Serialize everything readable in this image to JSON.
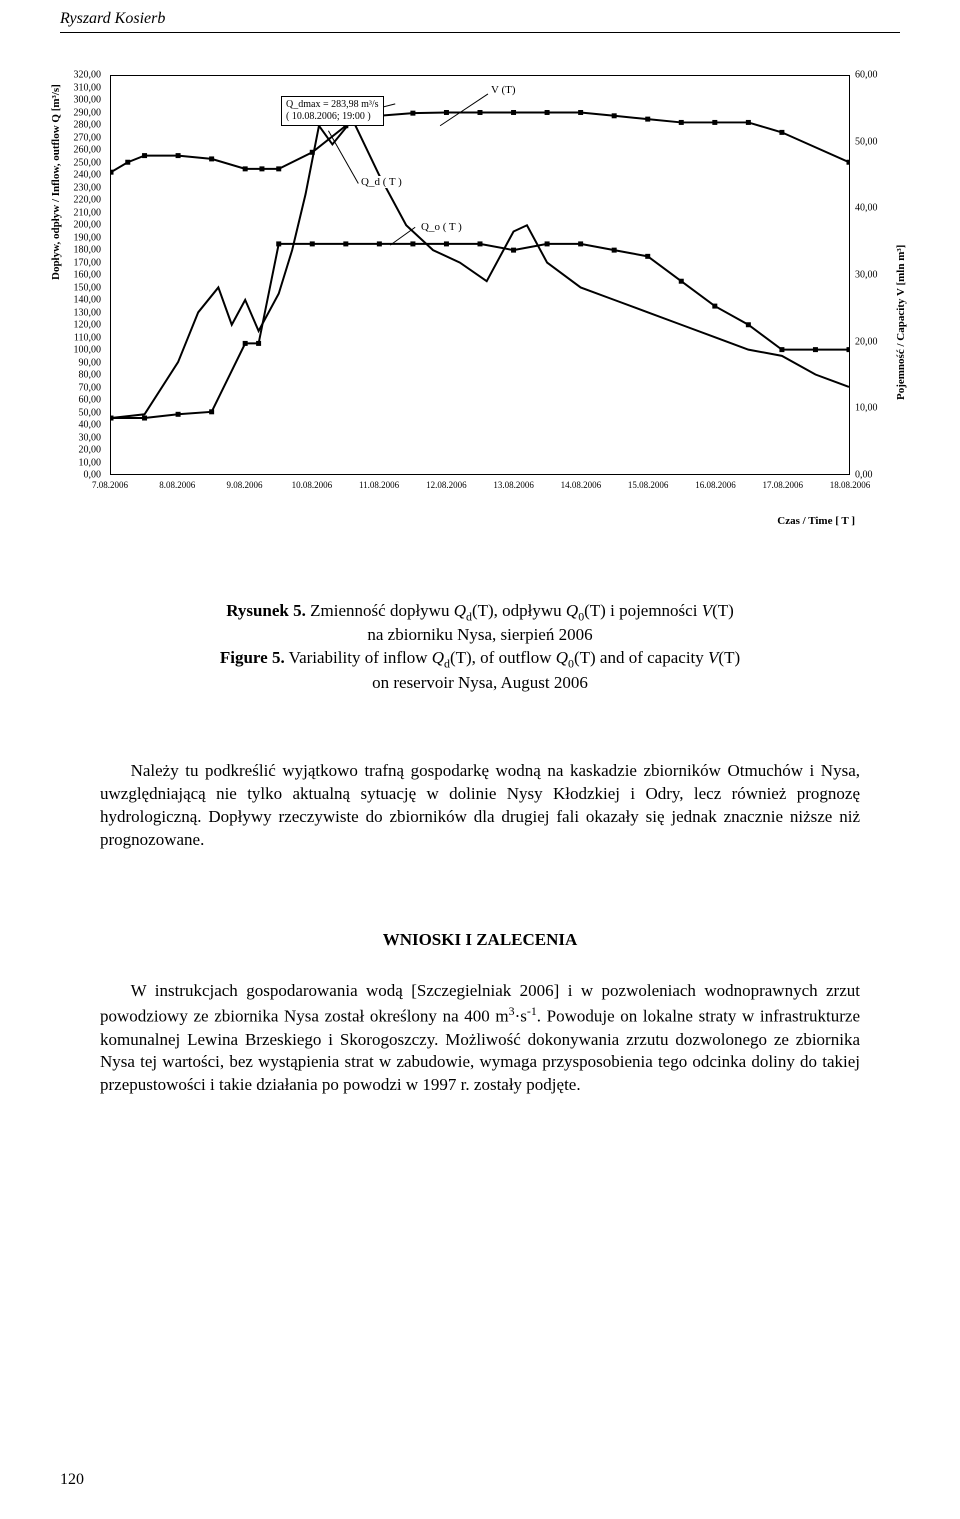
{
  "header": {
    "author": "Ryszard Kosierb"
  },
  "chart": {
    "type": "line",
    "y_left_label": "Dopływ, odpływ / Inflow, outflow Q [m³/s]",
    "y_right_label": "Pojemność / Capacity V [mln m³]",
    "x_label": "Czas / Time [ T ]",
    "y_left_min": 0,
    "y_left_max": 320,
    "y_left_step": 10,
    "y_left_ticks": [
      "0,00",
      "10,00",
      "20,00",
      "30,00",
      "40,00",
      "50,00",
      "60,00",
      "70,00",
      "80,00",
      "90,00",
      "100,00",
      "110,00",
      "120,00",
      "130,00",
      "140,00",
      "150,00",
      "160,00",
      "170,00",
      "180,00",
      "190,00",
      "200,00",
      "210,00",
      "220,00",
      "230,00",
      "240,00",
      "250,00",
      "260,00",
      "270,00",
      "280,00",
      "290,00",
      "300,00",
      "310,00",
      "320,00"
    ],
    "y_right_min": 0,
    "y_right_max": 60,
    "y_right_step": 10,
    "y_right_ticks": [
      "0,00",
      "10,00",
      "20,00",
      "30,00",
      "40,00",
      "50,00",
      "60,00"
    ],
    "x_categories": [
      "7.08.2006",
      "8.08.2006",
      "9.08.2006",
      "10.08.2006",
      "11.08.2006",
      "12.08.2006",
      "13.08.2006",
      "14.08.2006",
      "15.08.2006",
      "16.08.2006",
      "17.08.2006",
      "18.08.2006"
    ],
    "annotation": {
      "line1": "Q_dmax = 283,98 m³/s",
      "line2": "( 10.08.2006; 19:00 )"
    },
    "callouts": {
      "v": "V (T)",
      "qd": "Q_d ( T )",
      "qo": "Q_o ( T )"
    },
    "series": {
      "V": {
        "axis": "right",
        "color": "#000000",
        "marker": "square-filled",
        "line_width": 2,
        "points_x": [
          0,
          0.25,
          0.5,
          1,
          1.5,
          2,
          2.25,
          2.5,
          3,
          3.5,
          4,
          4.5,
          5,
          5.5,
          6,
          6.5,
          7,
          7.5,
          8,
          8.5,
          9,
          9.5,
          10,
          11
        ],
        "points_y": [
          45.5,
          47,
          48,
          48,
          47.5,
          46,
          46,
          46,
          48.5,
          52.5,
          54,
          54.4,
          54.5,
          54.5,
          54.5,
          54.5,
          54.5,
          54,
          53.5,
          53,
          53,
          53,
          51.5,
          47
        ]
      },
      "Qd": {
        "axis": "left",
        "color": "#000000",
        "marker": "none",
        "line_width": 2,
        "points_x": [
          0,
          0.5,
          1,
          1.3,
          1.6,
          1.8,
          2,
          2.2,
          2.5,
          2.7,
          2.9,
          3.1,
          3.3,
          3.6,
          4,
          4.4,
          4.8,
          5.2,
          5.6,
          6,
          6.2,
          6.5,
          7,
          7.5,
          8,
          8.5,
          9,
          9.5,
          10,
          10.5,
          11
        ],
        "points_y": [
          45,
          48,
          90,
          130,
          150,
          120,
          140,
          115,
          145,
          180,
          225,
          280,
          265,
          285,
          240,
          200,
          180,
          170,
          155,
          195,
          200,
          170,
          150,
          140,
          130,
          120,
          110,
          100,
          95,
          80,
          70
        ]
      },
      "Qo": {
        "axis": "left",
        "color": "#000000",
        "marker": "square-filled",
        "line_width": 2,
        "points_x": [
          0,
          0.5,
          1,
          1.5,
          2,
          2.2,
          2.5,
          3,
          3.5,
          4,
          4.5,
          5,
          5.5,
          6,
          6.5,
          7,
          7.5,
          8,
          8.5,
          9,
          9.5,
          10,
          10.5,
          11
        ],
        "points_y": [
          45,
          45,
          48,
          50,
          105,
          105,
          185,
          185,
          185,
          185,
          185,
          185,
          185,
          180,
          185,
          185,
          180,
          175,
          155,
          135,
          120,
          100,
          100,
          100
        ]
      }
    },
    "background_color": "#ffffff",
    "font_size_ticks": 10,
    "font_size_labels": 11
  },
  "caption": {
    "fig_pl_label": "Rysunek 5.",
    "fig_pl_text1": " Zmienność dopływu ",
    "fig_pl_sym1": "Q",
    "fig_pl_sub1": "d",
    "fig_pl_text2": "(T), odpływu ",
    "fig_pl_sym2": "Q",
    "fig_pl_sub2": "0",
    "fig_pl_text3": "(T) i pojemności ",
    "fig_pl_sym3": "V",
    "fig_pl_text4": "(T)",
    "fig_pl_line2": "na zbiorniku Nysa, sierpień 2006",
    "fig_en_label": "Figure 5.",
    "fig_en_text1": " Variability of inflow ",
    "fig_en_sym1": "Q",
    "fig_en_sub1": "d",
    "fig_en_text2": "(T), of outflow ",
    "fig_en_sym2": "Q",
    "fig_en_sub2": "0",
    "fig_en_text3": "(T) and of capacity ",
    "fig_en_sym3": "V",
    "fig_en_text4": "(T)",
    "fig_en_line2": "on reservoir Nysa, August 2006"
  },
  "body": {
    "para1": "Należy tu podkreślić wyjątkowo trafną gospodarkę wodną na kaskadzie zbiorników Otmuchów i Nysa, uwzględniającą nie tylko aktualną sytuację w dolinie Nysy Kłodzkiej i Odry, lecz również prognozę hydrologiczną. Dopływy rzeczywiste do zbiorników dla drugiej fali okazały się jednak znacznie niższe niż prognozowane.",
    "section_title": "WNIOSKI I ZALECENIA",
    "para2a": "W instrukcjach gospodarowania wodą [Szczegielniak 2006] i w pozwoleniach wodnoprawnych zrzut powodziowy ze zbiornika Nysa został określony na 400 m",
    "para2_sup": "3",
    "para2b": "·s",
    "para2_sup2": "-1",
    "para2c": ". Powoduje on lokalne straty w infrastrukturze komunalnej Lewina Brzeskiego i Skorogoszczy. Możliwość dokonywania zrzutu dozwolonego ze zbiornika Nysa tej wartości, bez wystąpienia strat w zabudowie, wymaga przysposobienia tego odcinka doliny do takiej przepustowości i takie działania po powodzi w 1997 r. zostały podjęte."
  },
  "page_number": "120"
}
